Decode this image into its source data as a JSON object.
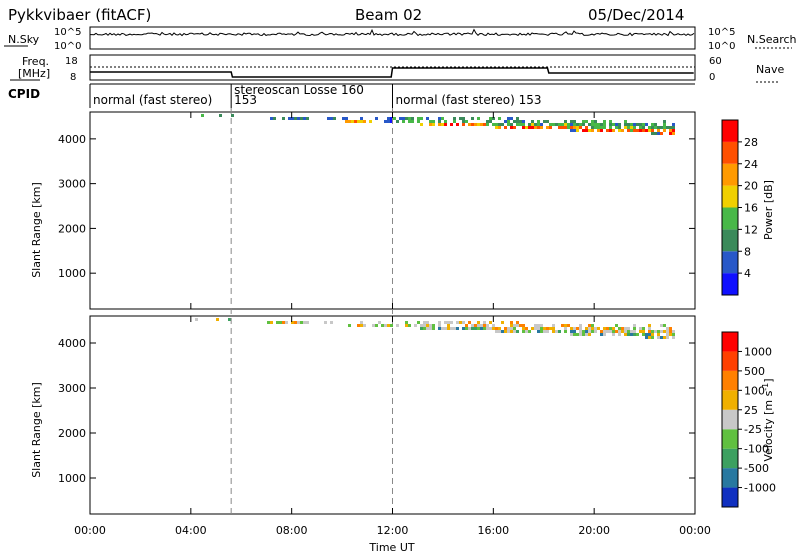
{
  "header": {
    "radar": "Pykkvibaer (fitACF)",
    "beam": "Beam 02",
    "date": "05/Dec/2014"
  },
  "nsky_panel": {
    "left_label": "N.Sky",
    "right_label": "N.Search",
    "left_ticks": [
      "10^5",
      "10^0"
    ],
    "right_ticks": [
      "10^5",
      "10^0"
    ]
  },
  "freq_panel": {
    "left_label_1": "Freq.",
    "left_label_2": "[MHz]",
    "right_label": "Nave",
    "left_ticks": [
      "18",
      "8"
    ],
    "right_ticks": [
      "60",
      "0"
    ]
  },
  "cpid": {
    "label": "CPID",
    "segments": [
      {
        "start_hour": 0,
        "end_hour": 5.6,
        "text": "normal (fast stereo)"
      },
      {
        "start_hour": 5.6,
        "end_hour": 12.0,
        "text": "stereoscan Losse 160"
      },
      {
        "start_hour": 12.0,
        "end_hour": 24.0,
        "text": "normal (fast stereo) 153"
      }
    ],
    "overflow_text": "153"
  },
  "chart_data": [
    {
      "type": "heatmap",
      "name": "Power",
      "ylabel": "Slant Range [km]",
      "xlabel": "Time UT",
      "x_ticks": [
        "00:00",
        "04:00",
        "08:00",
        "12:00",
        "16:00",
        "20:00",
        "00:00"
      ],
      "xlim_hours": [
        0,
        24
      ],
      "y_ticks": [
        "1000",
        "2000",
        "3000",
        "4000"
      ],
      "ylim": [
        200,
        4600
      ],
      "colorbar": {
        "label": "Power [dB]",
        "ticks": [
          "4",
          "8",
          "12",
          "16",
          "20",
          "24",
          "28"
        ],
        "range": [
          0,
          30
        ],
        "colors": [
          "#1010ff",
          "#2858c8",
          "#3a8a5a",
          "#48b848",
          "#f0d000",
          "#ff9a00",
          "#ff5000",
          "#ff0000"
        ]
      },
      "mode_change_hours": [
        5.6,
        12.0
      ]
    },
    {
      "type": "heatmap",
      "name": "Velocity",
      "ylabel": "Slant Range [km]",
      "xlabel": "Time UT",
      "x_ticks": [
        "00:00",
        "04:00",
        "08:00",
        "12:00",
        "16:00",
        "20:00",
        "00:00"
      ],
      "xlim_hours": [
        0,
        24
      ],
      "y_ticks": [
        "1000",
        "2000",
        "3000",
        "4000"
      ],
      "ylim": [
        200,
        4600
      ],
      "colorbar": {
        "label_main": "Velocity",
        "label_unit": "[m s",
        "label_exp": "-1",
        "label_close": "]",
        "ticks": [
          "1000",
          "500",
          "100",
          "25",
          "-25",
          "-100",
          "-500",
          "-1000"
        ],
        "colors": [
          "#1030c0",
          "#2878a0",
          "#3ca060",
          "#60c040",
          "#c8c8c8",
          "#f0b000",
          "#ff8000",
          "#ff4000",
          "#ff0000"
        ]
      },
      "mode_change_hours": [
        5.6,
        12.0
      ]
    }
  ]
}
